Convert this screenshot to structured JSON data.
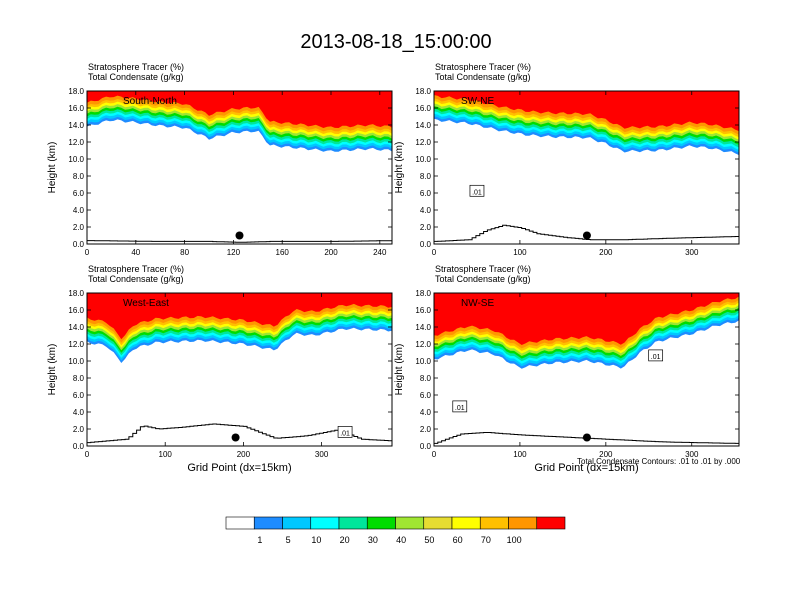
{
  "figure": {
    "title": "2013-08-18_15:00:00",
    "footnote": "Total Condensate Contours: .01 to .01 by .000",
    "colorbar": {
      "colors": [
        "#ffffff",
        "#1e8cff",
        "#00c8ff",
        "#00ffff",
        "#00e69b",
        "#00dc00",
        "#a0e632",
        "#e6dc32",
        "#ffff00",
        "#ffc000",
        "#ff9600",
        "#ff0000"
      ],
      "labels": [
        "1",
        "5",
        "10",
        "20",
        "30",
        "40",
        "50",
        "60",
        "70",
        "100"
      ]
    }
  },
  "chart_data": [
    {
      "type": "heatmap",
      "panel": "south-north",
      "label": "South-North",
      "header_line1": "Stratosphere Tracer   (%)",
      "header_line2": "Total Condensate   (g/kg)",
      "ylabel": "Height (km)",
      "xlabel": "",
      "xlim": [
        0,
        250
      ],
      "ylim": [
        0,
        18
      ],
      "xticks": [
        "0",
        "40",
        "80",
        "120",
        "160",
        "200",
        "240"
      ],
      "xtick_values": [
        0,
        40,
        80,
        120,
        160,
        200,
        240
      ],
      "yticks": [
        "0.0",
        "2.0",
        "4.0",
        "6.0",
        "8.0",
        "10.0",
        "12.0",
        "14.0",
        "16.0",
        "18.0"
      ],
      "tracer_base_km": [
        [
          0,
          13.8
        ],
        [
          20,
          14.6
        ],
        [
          40,
          14.3
        ],
        [
          60,
          13.9
        ],
        [
          80,
          13.7
        ],
        [
          100,
          12.4
        ],
        [
          120,
          13.1
        ],
        [
          140,
          13.3
        ],
        [
          150,
          11.6
        ],
        [
          180,
          11.2
        ],
        [
          200,
          10.9
        ],
        [
          230,
          11.2
        ],
        [
          250,
          11.0
        ]
      ],
      "terrain_km": [
        [
          0,
          0.4
        ],
        [
          60,
          0.3
        ],
        [
          100,
          0.3
        ],
        [
          125,
          0.2
        ],
        [
          150,
          0.3
        ],
        [
          200,
          0.3
        ],
        [
          250,
          0.4
        ]
      ],
      "marker": [
        125,
        1.0
      ],
      "labels": []
    },
    {
      "type": "heatmap",
      "panel": "sw-ne",
      "label": "SW-NE",
      "header_line1": "Stratosphere Tracer   (%)",
      "header_line2": "Total Condensate   (g/kg)",
      "ylabel": "Height (km)",
      "xlabel": "",
      "xlim": [
        0,
        355
      ],
      "ylim": [
        0,
        18
      ],
      "xticks": [
        "0",
        "100",
        "200",
        "300"
      ],
      "xtick_values": [
        0,
        100,
        200,
        300
      ],
      "yticks": [
        "0.0",
        "2.0",
        "4.0",
        "6.0",
        "8.0",
        "10.0",
        "12.0",
        "14.0",
        "16.0",
        "18.0"
      ],
      "tracer_base_km": [
        [
          0,
          14.6
        ],
        [
          40,
          14.2
        ],
        [
          80,
          13.3
        ],
        [
          110,
          12.8
        ],
        [
          140,
          12.6
        ],
        [
          180,
          12.5
        ],
        [
          200,
          11.8
        ],
        [
          220,
          10.9
        ],
        [
          260,
          11.0
        ],
        [
          300,
          11.5
        ],
        [
          320,
          11.3
        ],
        [
          355,
          10.6
        ]
      ],
      "terrain_km": [
        [
          0,
          0.3
        ],
        [
          40,
          0.5
        ],
        [
          60,
          1.6
        ],
        [
          80,
          2.2
        ],
        [
          100,
          1.9
        ],
        [
          120,
          1.2
        ],
        [
          150,
          0.8
        ],
        [
          180,
          0.5
        ],
        [
          220,
          0.5
        ],
        [
          280,
          0.7
        ],
        [
          320,
          0.8
        ],
        [
          355,
          0.9
        ]
      ],
      "marker": [
        178,
        1.0
      ],
      "labels": [
        {
          "text": ".01",
          "x": 50,
          "y": 6.2
        }
      ]
    },
    {
      "type": "heatmap",
      "panel": "west-east",
      "label": "West-East",
      "header_line1": "Stratosphere Tracer   (%)",
      "header_line2": "Total Condensate   (g/kg)",
      "ylabel": "Height (km)",
      "xlabel": "Grid Point (dx=15km)",
      "xlim": [
        0,
        390
      ],
      "ylim": [
        0,
        18
      ],
      "xticks": [
        "0",
        "100",
        "200",
        "300"
      ],
      "xtick_values": [
        0,
        100,
        200,
        300
      ],
      "yticks": [
        "0.0",
        "2.0",
        "4.0",
        "6.0",
        "8.0",
        "10.0",
        "12.0",
        "14.0",
        "16.0",
        "18.0"
      ],
      "tracer_base_km": [
        [
          0,
          12.2
        ],
        [
          25,
          11.8
        ],
        [
          45,
          9.8
        ],
        [
          60,
          11.5
        ],
        [
          90,
          12.2
        ],
        [
          150,
          12.4
        ],
        [
          200,
          12.0
        ],
        [
          240,
          11.3
        ],
        [
          265,
          13.2
        ],
        [
          290,
          13.0
        ],
        [
          330,
          13.8
        ],
        [
          390,
          13.6
        ]
      ],
      "terrain_km": [
        [
          0,
          0.4
        ],
        [
          50,
          0.8
        ],
        [
          70,
          2.4
        ],
        [
          90,
          2.0
        ],
        [
          120,
          2.2
        ],
        [
          160,
          2.6
        ],
        [
          200,
          2.3
        ],
        [
          240,
          0.9
        ],
        [
          280,
          1.2
        ],
        [
          320,
          1.9
        ],
        [
          350,
          0.8
        ],
        [
          390,
          0.6
        ]
      ],
      "marker": [
        190,
        1.0
      ],
      "labels": [
        {
          "text": ".01",
          "x": 330,
          "y": 1.6
        }
      ]
    },
    {
      "type": "heatmap",
      "panel": "nw-se",
      "label": "NW-SE",
      "header_line1": "Stratosphere Tracer   (%)",
      "header_line2": "Total Condensate   (g/kg)",
      "ylabel": "Height (km)",
      "xlabel": "Grid Point (dx=15km)",
      "xlim": [
        0,
        355
      ],
      "ylim": [
        0,
        18
      ],
      "xticks": [
        "0",
        "100",
        "200",
        "300"
      ],
      "xtick_values": [
        0,
        100,
        200,
        300
      ],
      "yticks": [
        "0.0",
        "2.0",
        "4.0",
        "6.0",
        "8.0",
        "10.0",
        "12.0",
        "14.0",
        "16.0",
        "18.0"
      ],
      "tracer_base_km": [
        [
          0,
          10.2
        ],
        [
          40,
          11.3
        ],
        [
          70,
          10.8
        ],
        [
          100,
          9.2
        ],
        [
          140,
          9.8
        ],
        [
          180,
          10.0
        ],
        [
          220,
          9.2
        ],
        [
          240,
          11.0
        ],
        [
          260,
          12.3
        ],
        [
          300,
          13.2
        ],
        [
          330,
          14.2
        ],
        [
          355,
          14.7
        ]
      ],
      "terrain_km": [
        [
          0,
          0.3
        ],
        [
          30,
          1.4
        ],
        [
          60,
          1.6
        ],
        [
          100,
          1.3
        ],
        [
          140,
          1.1
        ],
        [
          180,
          0.9
        ],
        [
          220,
          0.7
        ],
        [
          260,
          0.5
        ],
        [
          300,
          0.4
        ],
        [
          355,
          0.3
        ]
      ],
      "marker": [
        178,
        1.0
      ],
      "labels": [
        {
          "text": ".01",
          "x": 30,
          "y": 4.6
        },
        {
          "text": ".01",
          "x": 258,
          "y": 10.6
        }
      ]
    }
  ]
}
